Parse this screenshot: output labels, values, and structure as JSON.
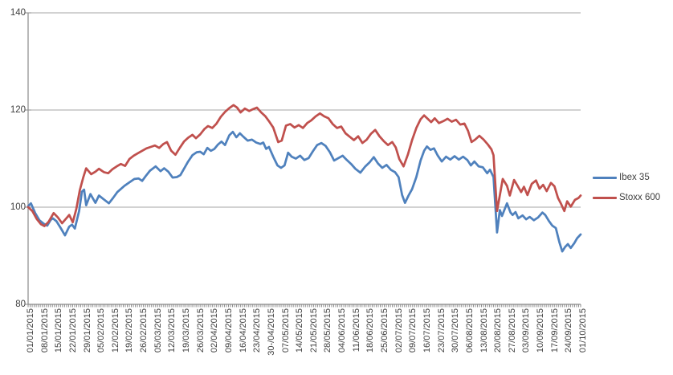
{
  "chart_data": {
    "type": "line",
    "title": "",
    "xlabel": "",
    "ylabel": "",
    "ylim": [
      80,
      140
    ],
    "y_ticks": [
      80,
      100,
      120,
      140
    ],
    "grid": true,
    "legend_position": "right",
    "x_weeks": 39,
    "minor_ticks_days": 273,
    "axis_color": "#8a8a8a",
    "gridline_color": "#a6a6a6",
    "label_color": "#404040",
    "x_labels": [
      "01/01/2015",
      "08/01/2015",
      "15/01/2015",
      "22/01/2015",
      "29/01/2015",
      "05/02/2015",
      "12/02/2015",
      "19/02/2015",
      "26/02/2015",
      "05/03/2015",
      "12/03/2015",
      "19/03/2015",
      "26/03/2015",
      "02/04/2015",
      "09/04/2015",
      "16/04/2015",
      "23/04/2015",
      "30-/04/2015",
      "07/05/2015",
      "14/05/2015",
      "21/05/2015",
      "28/05/2015",
      "04/06/2015",
      "11/06/2015",
      "18/06/2015",
      "25/06/2015",
      "02/07/2015",
      "09/07/2015",
      "16/07/2015",
      "23/07/2015",
      "30/07/2015",
      "06/08/2015",
      "13/08/2015",
      "20/08/2015",
      "27/08/2015",
      "03/09/2015",
      "10/09/2015",
      "17/09/2015",
      "24/09/2015",
      "01/10/2015"
    ],
    "series": [
      {
        "name": "Ibex 35",
        "color": "#4F81BD",
        "points": [
          [
            0,
            100.2
          ],
          [
            0.2,
            100.8
          ],
          [
            0.5,
            98.8
          ],
          [
            0.8,
            97.3
          ],
          [
            1.1,
            96.6
          ],
          [
            1.35,
            96.2
          ],
          [
            1.6,
            97.4
          ],
          [
            1.75,
            97.7
          ],
          [
            2.0,
            97.1
          ],
          [
            2.3,
            95.7
          ],
          [
            2.6,
            94.2
          ],
          [
            2.9,
            96.0
          ],
          [
            3.1,
            96.4
          ],
          [
            3.3,
            95.6
          ],
          [
            3.6,
            99.2
          ],
          [
            3.8,
            103.2
          ],
          [
            3.95,
            103.6
          ],
          [
            4.1,
            100.4
          ],
          [
            4.4,
            102.7
          ],
          [
            4.75,
            100.9
          ],
          [
            5.0,
            102.4
          ],
          [
            5.3,
            101.7
          ],
          [
            5.7,
            100.8
          ],
          [
            6.0,
            101.9
          ],
          [
            6.3,
            103.1
          ],
          [
            6.8,
            104.4
          ],
          [
            7.2,
            105.2
          ],
          [
            7.5,
            105.8
          ],
          [
            7.8,
            105.9
          ],
          [
            8.05,
            105.4
          ],
          [
            8.3,
            106.4
          ],
          [
            8.6,
            107.5
          ],
          [
            9.0,
            108.4
          ],
          [
            9.35,
            107.4
          ],
          [
            9.6,
            108.0
          ],
          [
            9.9,
            107.3
          ],
          [
            10.2,
            106.1
          ],
          [
            10.5,
            106.2
          ],
          [
            10.75,
            106.6
          ],
          [
            11.0,
            107.9
          ],
          [
            11.3,
            109.4
          ],
          [
            11.6,
            110.7
          ],
          [
            11.9,
            111.3
          ],
          [
            12.15,
            111.4
          ],
          [
            12.4,
            110.9
          ],
          [
            12.65,
            112.2
          ],
          [
            12.9,
            111.6
          ],
          [
            13.15,
            112.0
          ],
          [
            13.4,
            112.9
          ],
          [
            13.65,
            113.5
          ],
          [
            13.9,
            112.8
          ],
          [
            14.2,
            114.8
          ],
          [
            14.45,
            115.5
          ],
          [
            14.7,
            114.4
          ],
          [
            14.95,
            115.2
          ],
          [
            15.2,
            114.5
          ],
          [
            15.5,
            113.7
          ],
          [
            15.8,
            113.9
          ],
          [
            16.1,
            113.3
          ],
          [
            16.4,
            113.0
          ],
          [
            16.6,
            113.3
          ],
          [
            16.8,
            112.0
          ],
          [
            17.0,
            112.4
          ],
          [
            17.3,
            110.4
          ],
          [
            17.6,
            108.6
          ],
          [
            17.85,
            108.1
          ],
          [
            18.1,
            108.6
          ],
          [
            18.35,
            111.2
          ],
          [
            18.6,
            110.4
          ],
          [
            18.9,
            110.0
          ],
          [
            19.2,
            110.6
          ],
          [
            19.5,
            109.7
          ],
          [
            19.8,
            110.1
          ],
          [
            20.1,
            111.5
          ],
          [
            20.4,
            112.8
          ],
          [
            20.7,
            113.2
          ],
          [
            21.0,
            112.6
          ],
          [
            21.3,
            111.3
          ],
          [
            21.6,
            109.6
          ],
          [
            21.9,
            110.1
          ],
          [
            22.2,
            110.6
          ],
          [
            22.5,
            109.7
          ],
          [
            22.8,
            108.9
          ],
          [
            23.1,
            107.9
          ],
          [
            23.45,
            107.1
          ],
          [
            23.8,
            108.4
          ],
          [
            24.1,
            109.2
          ],
          [
            24.4,
            110.3
          ],
          [
            24.7,
            109.0
          ],
          [
            25.0,
            108.1
          ],
          [
            25.3,
            108.7
          ],
          [
            25.6,
            107.7
          ],
          [
            25.9,
            107.2
          ],
          [
            26.15,
            106.2
          ],
          [
            26.4,
            102.5
          ],
          [
            26.6,
            100.9
          ],
          [
            26.85,
            102.4
          ],
          [
            27.1,
            103.7
          ],
          [
            27.4,
            106.2
          ],
          [
            27.7,
            109.6
          ],
          [
            27.95,
            111.6
          ],
          [
            28.15,
            112.5
          ],
          [
            28.4,
            111.8
          ],
          [
            28.65,
            112.1
          ],
          [
            28.9,
            110.7
          ],
          [
            29.2,
            109.4
          ],
          [
            29.5,
            110.4
          ],
          [
            29.8,
            109.8
          ],
          [
            30.1,
            110.5
          ],
          [
            30.4,
            109.8
          ],
          [
            30.7,
            110.4
          ],
          [
            31.0,
            109.7
          ],
          [
            31.25,
            108.6
          ],
          [
            31.5,
            109.4
          ],
          [
            31.8,
            108.4
          ],
          [
            32.1,
            108.2
          ],
          [
            32.4,
            107.0
          ],
          [
            32.6,
            107.7
          ],
          [
            32.85,
            106.2
          ],
          [
            33.1,
            94.8
          ],
          [
            33.3,
            99.4
          ],
          [
            33.45,
            98.2
          ],
          [
            33.8,
            100.8
          ],
          [
            34.05,
            98.9
          ],
          [
            34.2,
            98.4
          ],
          [
            34.4,
            99.0
          ],
          [
            34.6,
            97.7
          ],
          [
            34.9,
            98.3
          ],
          [
            35.15,
            97.5
          ],
          [
            35.4,
            98.0
          ],
          [
            35.7,
            97.3
          ],
          [
            36.0,
            97.9
          ],
          [
            36.3,
            98.9
          ],
          [
            36.5,
            98.4
          ],
          [
            36.75,
            97.2
          ],
          [
            37.0,
            96.2
          ],
          [
            37.25,
            95.7
          ],
          [
            37.5,
            92.8
          ],
          [
            37.7,
            90.9
          ],
          [
            37.9,
            91.8
          ],
          [
            38.1,
            92.4
          ],
          [
            38.3,
            91.6
          ],
          [
            38.55,
            92.6
          ],
          [
            38.75,
            93.6
          ],
          [
            39.0,
            94.4
          ]
        ]
      },
      {
        "name": "Stoxx 600",
        "color": "#C0504D",
        "points": [
          [
            0,
            100.0
          ],
          [
            0.3,
            99.2
          ],
          [
            0.6,
            97.6
          ],
          [
            0.9,
            96.5
          ],
          [
            1.15,
            96.1
          ],
          [
            1.45,
            97.0
          ],
          [
            1.8,
            98.8
          ],
          [
            2.1,
            97.9
          ],
          [
            2.4,
            96.7
          ],
          [
            2.7,
            97.7
          ],
          [
            2.9,
            98.4
          ],
          [
            3.15,
            96.9
          ],
          [
            3.4,
            99.6
          ],
          [
            3.65,
            103.5
          ],
          [
            3.9,
            106.2
          ],
          [
            4.1,
            108.0
          ],
          [
            4.45,
            106.8
          ],
          [
            4.75,
            107.3
          ],
          [
            5.0,
            107.9
          ],
          [
            5.35,
            107.2
          ],
          [
            5.65,
            107.0
          ],
          [
            5.95,
            107.8
          ],
          [
            6.25,
            108.4
          ],
          [
            6.55,
            108.9
          ],
          [
            6.85,
            108.5
          ],
          [
            7.15,
            109.9
          ],
          [
            7.45,
            110.6
          ],
          [
            7.75,
            111.1
          ],
          [
            8.05,
            111.6
          ],
          [
            8.35,
            112.1
          ],
          [
            8.65,
            112.4
          ],
          [
            8.95,
            112.7
          ],
          [
            9.25,
            112.2
          ],
          [
            9.55,
            113.0
          ],
          [
            9.8,
            113.4
          ],
          [
            10.1,
            111.6
          ],
          [
            10.4,
            110.8
          ],
          [
            10.7,
            112.2
          ],
          [
            11.0,
            113.5
          ],
          [
            11.3,
            114.3
          ],
          [
            11.6,
            114.9
          ],
          [
            11.85,
            114.2
          ],
          [
            12.15,
            115.0
          ],
          [
            12.45,
            116.1
          ],
          [
            12.7,
            116.7
          ],
          [
            13.0,
            116.3
          ],
          [
            13.3,
            117.2
          ],
          [
            13.6,
            118.6
          ],
          [
            13.9,
            119.6
          ],
          [
            14.2,
            120.4
          ],
          [
            14.5,
            121.0
          ],
          [
            14.75,
            120.5
          ],
          [
            15.0,
            119.5
          ],
          [
            15.3,
            120.3
          ],
          [
            15.6,
            119.8
          ],
          [
            15.9,
            120.2
          ],
          [
            16.15,
            120.5
          ],
          [
            16.45,
            119.5
          ],
          [
            16.75,
            118.7
          ],
          [
            17.0,
            117.7
          ],
          [
            17.3,
            116.4
          ],
          [
            17.65,
            113.4
          ],
          [
            17.9,
            113.7
          ],
          [
            18.2,
            116.8
          ],
          [
            18.5,
            117.1
          ],
          [
            18.8,
            116.4
          ],
          [
            19.1,
            116.9
          ],
          [
            19.4,
            116.3
          ],
          [
            19.7,
            117.3
          ],
          [
            20.0,
            117.9
          ],
          [
            20.3,
            118.7
          ],
          [
            20.6,
            119.3
          ],
          [
            20.9,
            118.7
          ],
          [
            21.2,
            118.3
          ],
          [
            21.5,
            117.1
          ],
          [
            21.8,
            116.3
          ],
          [
            22.1,
            116.6
          ],
          [
            22.4,
            115.2
          ],
          [
            22.7,
            114.5
          ],
          [
            23.0,
            113.8
          ],
          [
            23.3,
            114.6
          ],
          [
            23.6,
            113.2
          ],
          [
            23.9,
            113.9
          ],
          [
            24.2,
            115.1
          ],
          [
            24.5,
            115.9
          ],
          [
            24.8,
            114.6
          ],
          [
            25.1,
            113.6
          ],
          [
            25.4,
            112.8
          ],
          [
            25.7,
            113.4
          ],
          [
            25.95,
            112.3
          ],
          [
            26.2,
            109.9
          ],
          [
            26.5,
            108.4
          ],
          [
            26.8,
            110.8
          ],
          [
            27.1,
            113.8
          ],
          [
            27.4,
            116.3
          ],
          [
            27.7,
            118.1
          ],
          [
            27.95,
            118.9
          ],
          [
            28.2,
            118.2
          ],
          [
            28.45,
            117.5
          ],
          [
            28.7,
            118.3
          ],
          [
            29.0,
            117.3
          ],
          [
            29.3,
            117.7
          ],
          [
            29.6,
            118.2
          ],
          [
            29.9,
            117.6
          ],
          [
            30.2,
            118.0
          ],
          [
            30.5,
            117.0
          ],
          [
            30.8,
            117.2
          ],
          [
            31.05,
            115.7
          ],
          [
            31.3,
            113.4
          ],
          [
            31.55,
            113.9
          ],
          [
            31.85,
            114.7
          ],
          [
            32.15,
            113.9
          ],
          [
            32.45,
            112.9
          ],
          [
            32.7,
            111.9
          ],
          [
            32.85,
            110.7
          ],
          [
            33.1,
            99.2
          ],
          [
            33.5,
            105.8
          ],
          [
            33.8,
            104.4
          ],
          [
            34.0,
            102.4
          ],
          [
            34.3,
            105.6
          ],
          [
            34.55,
            104.4
          ],
          [
            34.8,
            103.1
          ],
          [
            35.0,
            104.2
          ],
          [
            35.25,
            102.5
          ],
          [
            35.55,
            104.8
          ],
          [
            35.85,
            105.5
          ],
          [
            36.1,
            103.8
          ],
          [
            36.35,
            104.6
          ],
          [
            36.6,
            103.3
          ],
          [
            36.9,
            105.0
          ],
          [
            37.15,
            104.3
          ],
          [
            37.4,
            101.9
          ],
          [
            37.6,
            100.8
          ],
          [
            37.85,
            99.2
          ],
          [
            38.05,
            101.2
          ],
          [
            38.3,
            100.1
          ],
          [
            38.6,
            101.5
          ],
          [
            38.85,
            101.9
          ],
          [
            39.0,
            102.4
          ]
        ]
      }
    ]
  },
  "legend": {
    "items": [
      {
        "label": "Ibex 35"
      },
      {
        "label": "Stoxx 600"
      }
    ]
  }
}
